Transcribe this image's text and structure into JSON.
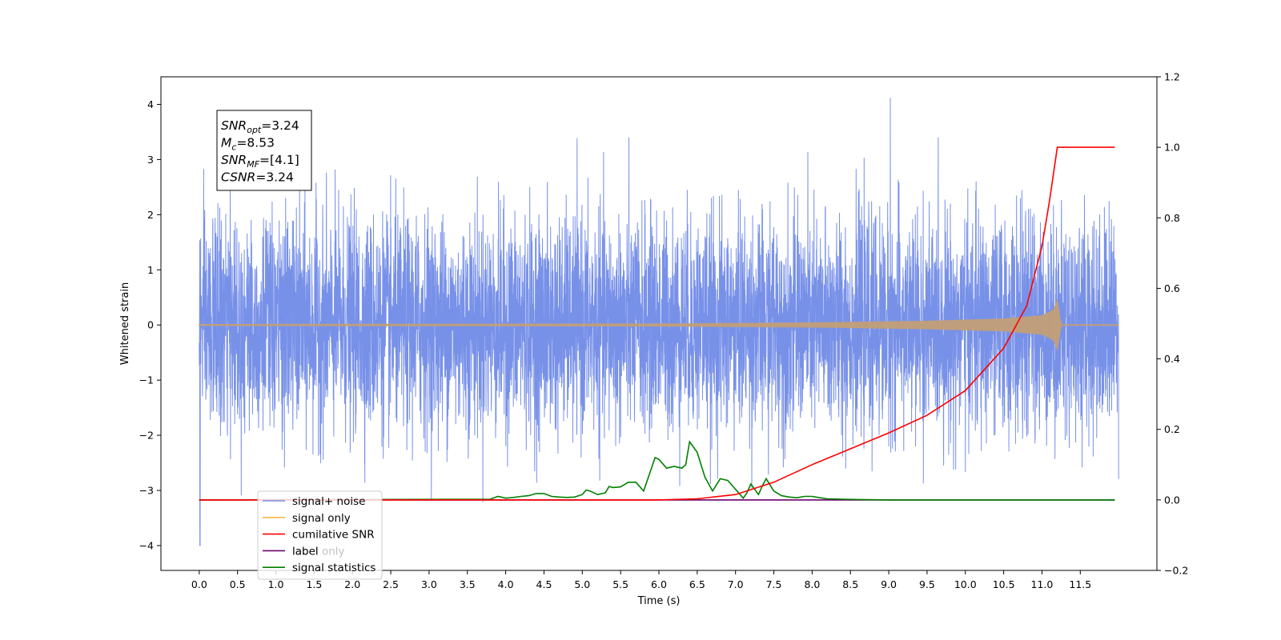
{
  "chart_data": {
    "type": "line",
    "xlabel": "Time (s)",
    "ylabel": "Whitened strain",
    "xlim": [
      -0.5,
      12.5
    ],
    "ylim": [
      -4.45,
      4.5
    ],
    "y2lim": [
      -0.2,
      1.2
    ],
    "x_ticks": [
      "0.0",
      "0.5",
      "1.0",
      "1.5",
      "2.0",
      "2.5",
      "3.0",
      "3.5",
      "4.0",
      "4.5",
      "5.0",
      "5.5",
      "6.0",
      "6.5",
      "7.0",
      "7.5",
      "8.0",
      "8.5",
      "9.0",
      "9.5",
      "10.0",
      "10.5",
      "11.0",
      "11.5"
    ],
    "y_ticks": [
      "−4",
      "−3",
      "−2",
      "−1",
      "0",
      "1",
      "2",
      "3",
      "4"
    ],
    "y2_ticks": [
      "−0.2",
      "0.0",
      "0.2",
      "0.4",
      "0.6",
      "0.8",
      "1.0",
      "1.2"
    ],
    "info_box": [
      {
        "base": "SNR",
        "sub": "opt",
        "value": "=3.24"
      },
      {
        "base": "M",
        "sub": "c",
        "value": "=8.53"
      },
      {
        "base": "SNR",
        "sub": "MF",
        "value": "=[4.1]"
      },
      {
        "base": "CSNR",
        "sub": "",
        "value": "=3.24"
      }
    ],
    "series": [
      {
        "name": "signal+ noise",
        "color": "#7891e8",
        "axis": "left",
        "description_stats": {
          "x_range": [
            0.0,
            12.0
          ],
          "std": 0.95,
          "peak_max": 4.12,
          "peak_max_t": 9.02,
          "peak_min": -4.0,
          "peak_min_t": 0.01
        }
      },
      {
        "name": "signal only",
        "color": "#ffb547",
        "axis": "left",
        "envelope": {
          "t": [
            0.0,
            6.0,
            8.0,
            9.5,
            10.5,
            11.0,
            11.15,
            11.2,
            11.25,
            12.0
          ],
          "amp": [
            0.01,
            0.02,
            0.04,
            0.07,
            0.11,
            0.17,
            0.27,
            0.45,
            0.0,
            0.0
          ]
        }
      },
      {
        "name": "cumilative SNR",
        "color": "#ff0000",
        "axis": "right",
        "x": [
          0.0,
          6.0,
          6.5,
          7.0,
          7.5,
          8.0,
          8.5,
          9.0,
          9.5,
          10.0,
          10.5,
          10.8,
          11.0,
          11.1,
          11.2,
          11.95
        ],
        "y": [
          0.0,
          0.0,
          0.003,
          0.015,
          0.05,
          0.1,
          0.145,
          0.19,
          0.24,
          0.31,
          0.43,
          0.55,
          0.72,
          0.85,
          1.0,
          1.0
        ]
      },
      {
        "name": "label",
        "color": "#6b006b",
        "axis": "right",
        "x": [
          0.0,
          11.95
        ],
        "y": [
          0.0,
          0.0
        ]
      },
      {
        "name": "label only",
        "color": "#6b006b",
        "axis": "right",
        "hidden_behind_legend": true
      },
      {
        "name": "signal statistics",
        "color": "#008000",
        "axis": "right",
        "x": [
          0.0,
          3.8,
          3.9,
          4.0,
          4.1,
          4.2,
          4.3,
          4.4,
          4.5,
          4.6,
          4.7,
          4.8,
          4.9,
          5.0,
          5.05,
          5.1,
          5.2,
          5.3,
          5.35,
          5.4,
          5.5,
          5.6,
          5.7,
          5.8,
          5.9,
          5.95,
          6.0,
          6.1,
          6.2,
          6.3,
          6.35,
          6.4,
          6.5,
          6.6,
          6.7,
          6.8,
          6.9,
          7.0,
          7.1,
          7.15,
          7.2,
          7.3,
          7.35,
          7.4,
          7.5,
          7.6,
          7.7,
          7.8,
          7.9,
          8.0,
          8.1,
          8.2,
          8.4,
          8.6,
          9.0,
          11.95
        ],
        "y": [
          0.0,
          0.002,
          0.01,
          0.005,
          0.007,
          0.01,
          0.012,
          0.018,
          0.018,
          0.01,
          0.008,
          0.007,
          0.008,
          0.015,
          0.028,
          0.025,
          0.015,
          0.02,
          0.038,
          0.035,
          0.037,
          0.05,
          0.05,
          0.025,
          0.088,
          0.12,
          0.115,
          0.09,
          0.095,
          0.09,
          0.1,
          0.165,
          0.135,
          0.065,
          0.025,
          0.06,
          0.055,
          0.03,
          0.005,
          0.02,
          0.045,
          0.015,
          0.04,
          0.06,
          0.025,
          0.012,
          0.008,
          0.006,
          0.01,
          0.01,
          0.006,
          0.003,
          0.002,
          0.001,
          0.0,
          0.0
        ]
      }
    ]
  }
}
